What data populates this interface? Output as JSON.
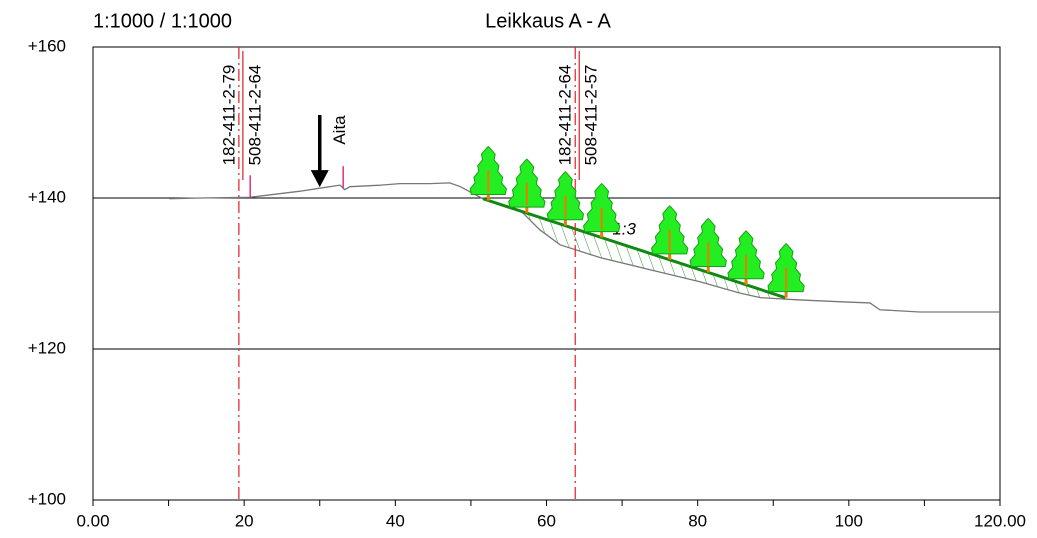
{
  "chart_data": {
    "type": "line",
    "title": "Leikkaus A - A",
    "scale_label": "1:1000 / 1:1000",
    "xlim": [
      0,
      120
    ],
    "ylim": [
      100,
      160
    ],
    "xticks": [
      {
        "value": 0,
        "label": "0.00"
      },
      20,
      40,
      60,
      80,
      100,
      {
        "value": 120,
        "label": "120.00"
      }
    ],
    "xminor_ticks": [
      10,
      30,
      50,
      70,
      90,
      110
    ],
    "yticks": [
      {
        "value": 100,
        "label": "+100"
      },
      {
        "value": 120,
        "label": "+120"
      },
      {
        "value": 140,
        "label": "+140"
      },
      {
        "value": 160,
        "label": "+160"
      }
    ],
    "grid": true,
    "series": [
      {
        "color": "#777777",
        "x": [
          10.1,
          14.2,
          20.8,
          27.4,
          30,
          32.7,
          33.3,
          34,
          38,
          40.6,
          44.6,
          47.2,
          48.6,
          51.6,
          56.5,
          59.1,
          61.8,
          67.1,
          73.7,
          80.3,
          85.6,
          88.3,
          93.5,
          100.2,
          102.8,
          104.1,
          109.4,
          120
        ],
        "values": [
          139.9,
          140,
          140.1,
          140.9,
          141.3,
          141.7,
          141.1,
          141.5,
          141.7,
          141.9,
          141.9,
          142,
          141.5,
          139.9,
          138.4,
          135.8,
          133.8,
          132.1,
          130.5,
          128.9,
          127.4,
          126.8,
          126.5,
          126.2,
          126.1,
          125.2,
          124.9,
          124.9
        ]
      },
      {
        "color": "#118811",
        "label": "1:3",
        "x": [
          51.6,
          91.6
        ],
        "values": [
          139.9,
          126.8
        ]
      }
    ],
    "boundaries": [
      {
        "x": 19.3,
        "labels": [
          "182-411-2-79",
          "508-411-2-64"
        ]
      },
      {
        "x": 63.8,
        "labels": [
          "182-411-2-64",
          "508-411-2-57"
        ]
      }
    ],
    "markers_x": [
      20.8,
      33.1
    ],
    "annotation": {
      "text": "Aita",
      "x": 30
    },
    "trees_x": [
      52.3,
      57.4,
      62.5,
      67.3,
      76.3,
      81.4,
      86.4,
      91.7
    ]
  }
}
